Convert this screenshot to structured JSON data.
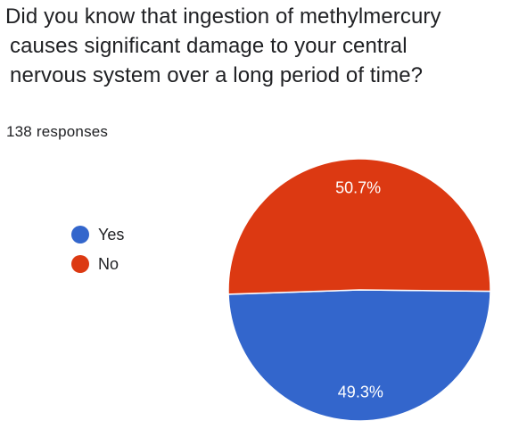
{
  "chart_data": {
    "type": "pie",
    "title_lines": [
      "Did you know that ingestion of methylmercury",
      "causes significant damage to your central",
      "nervous system over a long period of time?"
    ],
    "subtitle": "138 responses",
    "categories": [
      "Yes",
      "No"
    ],
    "values": [
      49.3,
      50.7
    ],
    "data_labels": [
      "49.3%",
      "50.7%"
    ],
    "colors": [
      "#3366cc",
      "#dc3912"
    ],
    "legend_position": "left"
  }
}
